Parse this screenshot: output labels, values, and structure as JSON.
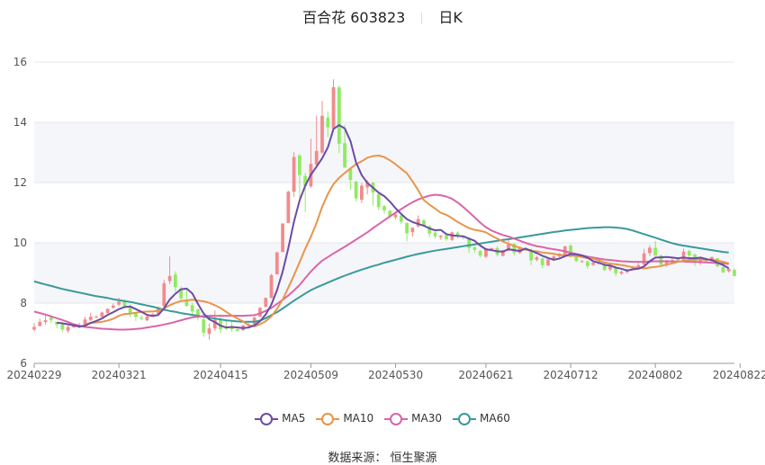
{
  "header": {
    "stock_name": "百合花 603823",
    "period": "日K"
  },
  "source_text": "数据来源： 恒生聚源",
  "colors": {
    "up": "#f28b8b",
    "down": "#90ea62",
    "ma5": "#6c4ca6",
    "ma10": "#e8954a",
    "ma30": "#d966a8",
    "ma60": "#3a9a9a"
  },
  "chart_data": {
    "type": "candlestick",
    "title": "百合花 603823 日K",
    "ylim": [
      6,
      16.6
    ],
    "yticks": [
      6,
      8,
      10,
      12,
      14,
      16
    ],
    "x_tick_labels": [
      "20240229",
      "20240321",
      "20240415",
      "20240509",
      "20240530",
      "20240621",
      "20240712",
      "20240802",
      "20240822"
    ],
    "x_tick_index": [
      0,
      15,
      33,
      49,
      64,
      80,
      95,
      110,
      125
    ],
    "legend": [
      "MA5",
      "MA10",
      "MA30",
      "MA60"
    ],
    "legend_position": "bottom",
    "grid": "horizontal",
    "candles_note": "[open, close, low, high] per trading day",
    "candles": [
      [
        7.12,
        7.21,
        7.06,
        7.34
      ],
      [
        7.24,
        7.38,
        7.23,
        7.48
      ],
      [
        7.37,
        7.43,
        7.29,
        7.6
      ],
      [
        7.52,
        7.43,
        7.34,
        7.62
      ],
      [
        7.38,
        7.29,
        7.17,
        7.38
      ],
      [
        7.3,
        7.12,
        7.04,
        7.37
      ],
      [
        7.08,
        7.21,
        7.01,
        7.28
      ],
      [
        7.2,
        7.25,
        7.17,
        7.31
      ],
      [
        7.23,
        7.23,
        7.16,
        7.34
      ],
      [
        7.26,
        7.46,
        7.2,
        7.55
      ],
      [
        7.44,
        7.55,
        7.4,
        7.68
      ],
      [
        7.54,
        7.55,
        7.5,
        7.6
      ],
      [
        7.55,
        7.69,
        7.5,
        7.72
      ],
      [
        7.67,
        7.81,
        7.65,
        7.83
      ],
      [
        7.84,
        7.92,
        7.82,
        7.99
      ],
      [
        7.95,
        8.05,
        7.89,
        8.18
      ],
      [
        8.04,
        7.85,
        7.84,
        8.12
      ],
      [
        7.89,
        7.63,
        7.53,
        7.96
      ],
      [
        7.67,
        7.54,
        7.41,
        7.67
      ],
      [
        7.52,
        7.48,
        7.43,
        7.59
      ],
      [
        7.43,
        7.56,
        7.4,
        7.58
      ],
      [
        7.59,
        7.63,
        7.56,
        7.67
      ],
      [
        7.64,
        7.84,
        7.59,
        7.9
      ],
      [
        7.9,
        8.66,
        7.74,
        8.78
      ],
      [
        8.73,
        8.9,
        8.63,
        9.55
      ],
      [
        8.95,
        8.53,
        8.37,
        9.06
      ],
      [
        8.49,
        8.16,
        8.03,
        8.56
      ],
      [
        8.12,
        7.91,
        7.88,
        8.48
      ],
      [
        7.93,
        7.72,
        7.57,
        8.01
      ],
      [
        7.8,
        7.51,
        7.42,
        7.81
      ],
      [
        7.46,
        7.02,
        6.88,
        7.63
      ],
      [
        6.98,
        7.16,
        6.79,
        7.33
      ],
      [
        7.16,
        7.45,
        7.08,
        7.76
      ],
      [
        7.47,
        7.13,
        7.01,
        7.63
      ],
      [
        7.18,
        7.17,
        7.1,
        7.44
      ],
      [
        7.21,
        7.13,
        7.05,
        7.4
      ],
      [
        7.14,
        7.08,
        7.07,
        7.13
      ],
      [
        7.1,
        7.26,
        7.08,
        7.29
      ],
      [
        7.26,
        7.29,
        7.21,
        7.34
      ],
      [
        7.29,
        7.52,
        7.27,
        7.55
      ],
      [
        7.55,
        7.84,
        7.54,
        7.88
      ],
      [
        7.88,
        8.17,
        7.87,
        8.19
      ],
      [
        8.17,
        8.93,
        8.16,
        8.97
      ],
      [
        8.96,
        9.68,
        8.95,
        9.71
      ],
      [
        9.7,
        10.64,
        9.69,
        10.66
      ],
      [
        10.66,
        11.7,
        10.66,
        11.73
      ],
      [
        11.7,
        12.85,
        11.53,
        13.01
      ],
      [
        12.9,
        12.25,
        11.36,
        12.96
      ],
      [
        12.22,
        11.89,
        11.03,
        12.32
      ],
      [
        11.88,
        12.62,
        11.82,
        13.46
      ],
      [
        12.6,
        13.05,
        12.54,
        14.23
      ],
      [
        13.0,
        14.22,
        12.96,
        14.71
      ],
      [
        14.16,
        13.84,
        13.51,
        14.37
      ],
      [
        13.8,
        15.17,
        13.69,
        15.43
      ],
      [
        15.16,
        13.29,
        12.98,
        15.22
      ],
      [
        13.31,
        12.5,
        12.49,
        13.92
      ],
      [
        12.45,
        12.09,
        11.75,
        12.45
      ],
      [
        12.03,
        11.48,
        11.38,
        12.06
      ],
      [
        11.43,
        11.9,
        11.32,
        12.0
      ],
      [
        11.84,
        12.02,
        11.61,
        12.09
      ],
      [
        12.0,
        11.67,
        11.23,
        12.02
      ],
      [
        11.62,
        11.19,
        11.09,
        11.63
      ],
      [
        11.22,
        11.08,
        10.97,
        11.27
      ],
      [
        11.07,
        10.89,
        10.81,
        11.09
      ],
      [
        10.85,
        10.94,
        10.78,
        11.05
      ],
      [
        10.91,
        10.7,
        10.62,
        10.93
      ],
      [
        10.66,
        10.32,
        10.05,
        10.68
      ],
      [
        10.36,
        10.5,
        10.21,
        10.52
      ],
      [
        10.55,
        10.79,
        10.51,
        10.91
      ],
      [
        10.75,
        10.58,
        10.53,
        10.78
      ],
      [
        10.55,
        10.31,
        10.19,
        10.6
      ],
      [
        10.34,
        10.22,
        10.14,
        10.38
      ],
      [
        10.19,
        10.24,
        10.1,
        10.26
      ],
      [
        10.26,
        10.12,
        10.05,
        10.32
      ],
      [
        10.1,
        10.35,
        10.06,
        10.38
      ],
      [
        10.34,
        10.23,
        10.13,
        10.38
      ],
      [
        10.23,
        10.17,
        10.12,
        10.25
      ],
      [
        10.16,
        9.83,
        9.67,
        10.19
      ],
      [
        9.85,
        9.77,
        9.68,
        9.88
      ],
      [
        9.73,
        9.58,
        9.51,
        9.76
      ],
      [
        9.54,
        9.81,
        9.5,
        9.83
      ],
      [
        9.81,
        9.82,
        9.77,
        9.84
      ],
      [
        9.83,
        9.61,
        9.55,
        9.89
      ],
      [
        9.57,
        9.75,
        9.55,
        9.77
      ],
      [
        9.75,
        9.95,
        9.73,
        10.11
      ],
      [
        9.97,
        9.68,
        9.58,
        9.98
      ],
      [
        9.67,
        9.86,
        9.63,
        9.88
      ],
      [
        9.83,
        9.8,
        9.73,
        9.85
      ],
      [
        9.77,
        9.42,
        9.26,
        9.81
      ],
      [
        9.44,
        9.52,
        9.39,
        9.57
      ],
      [
        9.48,
        9.26,
        9.15,
        9.51
      ],
      [
        9.25,
        9.45,
        9.23,
        9.48
      ],
      [
        9.44,
        9.55,
        9.4,
        9.6
      ],
      [
        9.55,
        9.64,
        9.52,
        9.66
      ],
      [
        9.6,
        9.88,
        9.58,
        9.91
      ],
      [
        9.91,
        9.61,
        9.51,
        9.96
      ],
      [
        9.62,
        9.4,
        9.36,
        9.64
      ],
      [
        9.39,
        9.39,
        9.34,
        9.43
      ],
      [
        9.39,
        9.23,
        9.14,
        9.41
      ],
      [
        9.27,
        9.34,
        9.23,
        9.39
      ],
      [
        9.3,
        9.34,
        9.28,
        9.39
      ],
      [
        9.36,
        9.1,
        9.07,
        9.37
      ],
      [
        9.12,
        9.23,
        9.06,
        9.24
      ],
      [
        9.19,
        8.99,
        8.89,
        9.24
      ],
      [
        8.98,
        9.04,
        8.94,
        9.08
      ],
      [
        9.03,
        9.12,
        8.98,
        9.14
      ],
      [
        9.15,
        9.2,
        9.1,
        9.23
      ],
      [
        9.17,
        9.26,
        9.16,
        9.33
      ],
      [
        9.28,
        9.65,
        9.25,
        9.8
      ],
      [
        9.66,
        9.84,
        9.56,
        9.93
      ],
      [
        9.84,
        9.58,
        9.57,
        10.07
      ],
      [
        9.59,
        9.28,
        9.22,
        9.6
      ],
      [
        9.28,
        9.42,
        9.2,
        9.43
      ],
      [
        9.39,
        9.43,
        9.34,
        9.48
      ],
      [
        9.47,
        9.42,
        9.38,
        9.49
      ],
      [
        9.44,
        9.71,
        9.43,
        9.81
      ],
      [
        9.73,
        9.58,
        9.48,
        9.77
      ],
      [
        9.61,
        9.33,
        9.23,
        9.65
      ],
      [
        9.33,
        9.52,
        9.27,
        9.53
      ],
      [
        9.48,
        9.39,
        9.34,
        9.52
      ],
      [
        9.39,
        9.53,
        9.34,
        9.54
      ],
      [
        9.49,
        9.22,
        9.19,
        9.5
      ],
      [
        9.19,
        9.02,
        9.0,
        9.23
      ],
      [
        9.06,
        9.14,
        9.01,
        9.16
      ],
      [
        9.1,
        8.9,
        8.89,
        9.15
      ]
    ],
    "ma5": [
      null,
      null,
      null,
      null,
      7.35,
      7.33,
      7.3,
      7.26,
      7.22,
      7.25,
      7.34,
      7.41,
      7.49,
      7.61,
      7.7,
      7.8,
      7.87,
      7.89,
      7.8,
      7.71,
      7.61,
      7.57,
      7.61,
      7.83,
      8.12,
      8.31,
      8.46,
      8.48,
      8.32,
      7.97,
      7.66,
      7.46,
      7.37,
      7.25,
      7.19,
      7.21,
      7.19,
      7.17,
      7.19,
      7.26,
      7.4,
      7.62,
      7.95,
      8.43,
      9.05,
      9.82,
      10.7,
      11.41,
      11.9,
      12.26,
      12.53,
      12.81,
      13.17,
      13.78,
      13.91,
      13.8,
      13.38,
      12.67,
      12.25,
      11.99,
      11.83,
      11.67,
      11.55,
      11.37,
      11.15,
      10.96,
      10.79,
      10.69,
      10.63,
      10.57,
      10.48,
      10.42,
      10.43,
      10.29,
      10.25,
      10.23,
      10.22,
      10.14,
      10.07,
      9.91,
      9.79,
      9.76,
      9.72,
      9.71,
      9.79,
      9.76,
      9.73,
      9.81,
      9.74,
      9.66,
      9.57,
      9.5,
      9.44,
      9.48,
      9.56,
      9.63,
      9.62,
      9.58,
      9.51,
      9.39,
      9.34,
      9.27,
      9.25,
      9.18,
      9.14,
      9.08,
      9.12,
      9.14,
      9.22,
      9.39,
      9.51,
      9.52,
      9.53,
      9.51,
      9.49,
      9.51,
      9.49,
      9.49,
      9.51,
      9.46,
      9.43,
      9.34,
      9.26,
      9.16
    ],
    "ma10": [
      null,
      null,
      null,
      null,
      null,
      null,
      null,
      null,
      null,
      7.3,
      7.34,
      7.36,
      7.38,
      7.42,
      7.48,
      7.58,
      7.64,
      7.65,
      7.68,
      7.71,
      7.72,
      7.72,
      7.75,
      7.82,
      7.93,
      8.01,
      8.07,
      8.09,
      8.11,
      8.08,
      8.06,
      8.01,
      7.93,
      7.84,
      7.71,
      7.59,
      7.49,
      7.39,
      7.26,
      7.23,
      7.3,
      7.4,
      7.56,
      7.81,
      8.12,
      8.51,
      8.92,
      9.36,
      9.81,
      10.2,
      10.66,
      11.2,
      11.62,
      11.95,
      12.16,
      12.32,
      12.47,
      12.61,
      12.71,
      12.83,
      12.88,
      12.9,
      12.85,
      12.74,
      12.61,
      12.46,
      12.31,
      12.04,
      11.75,
      11.42,
      11.27,
      11.14,
      11.0,
      10.93,
      10.82,
      10.69,
      10.59,
      10.49,
      10.43,
      10.4,
      10.35,
      10.24,
      10.14,
      10.05,
      9.97,
      9.9,
      9.84,
      9.78,
      9.73,
      9.72,
      9.68,
      9.66,
      9.64,
      9.6,
      9.58,
      9.57,
      9.57,
      9.53,
      9.49,
      9.48,
      9.42,
      9.35,
      9.31,
      9.29,
      9.26,
      9.23,
      9.19,
      9.17,
      9.15,
      9.18,
      9.2,
      9.23,
      9.28,
      9.32,
      9.37,
      9.41,
      9.43,
      9.45,
      9.45,
      9.44,
      9.44,
      9.41,
      9.37,
      9.32
    ],
    "ma30": [
      7.72,
      7.67,
      7.62,
      7.56,
      7.5,
      7.44,
      7.37,
      7.3,
      7.25,
      7.21,
      7.19,
      7.17,
      7.15,
      7.14,
      7.13,
      7.12,
      7.12,
      7.13,
      7.14,
      7.16,
      7.19,
      7.22,
      7.25,
      7.29,
      7.33,
      7.38,
      7.43,
      7.48,
      7.53,
      7.55,
      7.57,
      7.58,
      7.58,
      7.58,
      7.58,
      7.58,
      7.58,
      7.58,
      7.59,
      7.6,
      7.66,
      7.74,
      7.84,
      7.97,
      8.11,
      8.25,
      8.42,
      8.6,
      8.83,
      9.05,
      9.24,
      9.41,
      9.53,
      9.65,
      9.76,
      9.87,
      9.99,
      10.11,
      10.23,
      10.35,
      10.49,
      10.62,
      10.75,
      10.88,
      11.0,
      11.12,
      11.24,
      11.35,
      11.44,
      11.51,
      11.57,
      11.6,
      11.58,
      11.54,
      11.46,
      11.34,
      11.19,
      11.02,
      10.85,
      10.67,
      10.52,
      10.41,
      10.33,
      10.26,
      10.21,
      10.14,
      10.07,
      10.0,
      9.94,
      9.89,
      9.86,
      9.82,
      9.79,
      9.76,
      9.72,
      9.67,
      9.63,
      9.59,
      9.54,
      9.51,
      9.48,
      9.45,
      9.43,
      9.41,
      9.39,
      9.38,
      9.37,
      9.37,
      9.37,
      9.38,
      9.39,
      9.39,
      9.39,
      9.38,
      9.38,
      9.38,
      9.37,
      9.37,
      9.36,
      9.35,
      9.34,
      9.33,
      9.32,
      9.3
    ],
    "ma60": [
      8.72,
      8.67,
      8.62,
      8.57,
      8.52,
      8.47,
      8.43,
      8.39,
      8.35,
      8.31,
      8.27,
      8.23,
      8.2,
      8.17,
      8.13,
      8.1,
      8.07,
      8.04,
      8.0,
      7.96,
      7.92,
      7.88,
      7.83,
      7.78,
      7.74,
      7.71,
      7.67,
      7.64,
      7.61,
      7.58,
      7.55,
      7.52,
      7.49,
      7.46,
      7.43,
      7.41,
      7.39,
      7.38,
      7.38,
      7.38,
      7.42,
      7.5,
      7.6,
      7.7,
      7.82,
      7.95,
      8.08,
      8.2,
      8.32,
      8.43,
      8.52,
      8.6,
      8.68,
      8.76,
      8.84,
      8.91,
      8.98,
      9.05,
      9.11,
      9.17,
      9.23,
      9.28,
      9.34,
      9.39,
      9.44,
      9.49,
      9.54,
      9.59,
      9.63,
      9.67,
      9.71,
      9.74,
      9.77,
      9.8,
      9.83,
      9.86,
      9.89,
      9.92,
      9.95,
      9.98,
      10.01,
      10.04,
      10.07,
      10.1,
      10.12,
      10.15,
      10.18,
      10.21,
      10.24,
      10.27,
      10.3,
      10.33,
      10.36,
      10.38,
      10.41,
      10.43,
      10.45,
      10.47,
      10.49,
      10.5,
      10.51,
      10.52,
      10.52,
      10.51,
      10.49,
      10.46,
      10.41,
      10.35,
      10.29,
      10.23,
      10.17,
      10.11,
      10.05,
      9.99,
      9.94,
      9.91,
      9.88,
      9.85,
      9.82,
      9.79,
      9.76,
      9.73,
      9.7,
      9.68
    ]
  }
}
